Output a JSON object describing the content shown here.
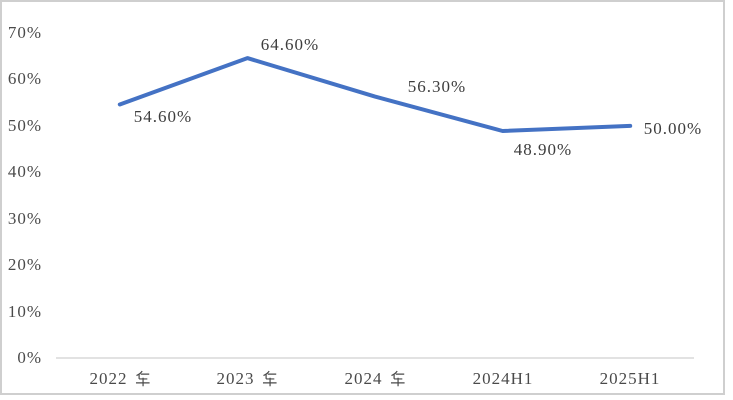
{
  "chart_data": {
    "type": "line",
    "categories": [
      "2022 年",
      "2023 年",
      "2024 年",
      "2024H1",
      "2025H1"
    ],
    "values": [
      54.6,
      64.6,
      56.3,
      48.9,
      50.0
    ],
    "point_labels": [
      "54.60%",
      "64.60%",
      "56.30%",
      "48.90%",
      "50.00%"
    ],
    "y_tick_labels": [
      "0%",
      "10%",
      "20%",
      "30%",
      "40%",
      "50%",
      "60%",
      "70%"
    ],
    "ylim": [
      0,
      70
    ],
    "y_tick_step": 10,
    "title": "",
    "xlabel": "",
    "ylabel": "",
    "grid": false,
    "legend": "none",
    "line_color": "#4472C4",
    "axis_line_color": "#D9D9D9",
    "frame_border_color": "#CFCFCF",
    "axis_text_color": "#4A4A4A",
    "data_label_color": "#3D3D3D"
  }
}
